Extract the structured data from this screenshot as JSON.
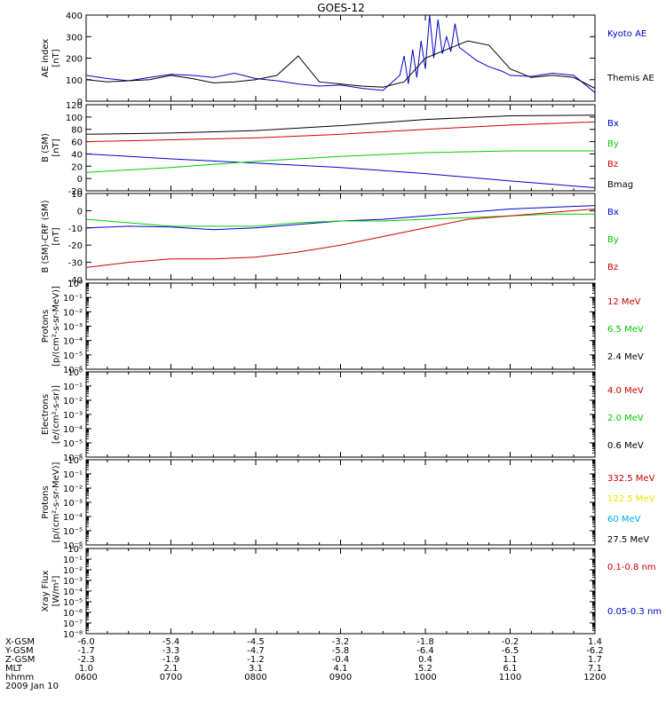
{
  "title": "GOES-12",
  "date_label": "2009 Jan 10",
  "colors": {
    "black": "#000000",
    "red": "#cc0000",
    "green": "#00cc00",
    "blue": "#0000cc",
    "yellow": "#e6e600",
    "cyan": "#00aaee"
  },
  "time_axis": {
    "labels": [
      "0600",
      "0700",
      "0800",
      "0900",
      "1000",
      "1100",
      "1200"
    ],
    "range_hours": [
      6,
      12
    ]
  },
  "ephemeris": {
    "rows": [
      {
        "name": "X-GSM",
        "values": [
          "-6.0",
          "-5.4",
          "-4.5",
          "-3.2",
          "-1.8",
          "-0.2",
          "1.4"
        ]
      },
      {
        "name": "Y-GSM",
        "values": [
          "-1.7",
          "-3.3",
          "-4.7",
          "-5.8",
          "-6.4",
          "-6.5",
          "-6.2"
        ]
      },
      {
        "name": "Z-GSM",
        "values": [
          "-2.3",
          "-1.9",
          "-1.2",
          "-0.4",
          "0.4",
          "1.1",
          "1.7"
        ]
      },
      {
        "name": "MLT",
        "values": [
          "1.0",
          "2.1",
          "3.1",
          "4.1",
          "5.2",
          "6.1",
          "7.1"
        ]
      },
      {
        "name": "hhmm",
        "values": [
          "0600",
          "0700",
          "0800",
          "0900",
          "1000",
          "1100",
          "1200"
        ]
      }
    ]
  },
  "chart_data": [
    {
      "type": "line",
      "ylabel_lines": [
        "AE index",
        "[nT]"
      ],
      "ylim": [
        0,
        400
      ],
      "yticks": [
        "0",
        "100",
        "200",
        "300",
        "400"
      ],
      "log": false,
      "legend": [
        {
          "label": "Kyoto AE",
          "color": "#0000cc"
        },
        {
          "label": "Themis AE",
          "color": "#000000"
        }
      ],
      "series": [
        {
          "name": "Kyoto AE",
          "color": "#0000cc",
          "x": [
            6.0,
            6.25,
            6.5,
            6.75,
            7.0,
            7.25,
            7.5,
            7.75,
            8.0,
            8.25,
            8.5,
            8.75,
            9.0,
            9.25,
            9.5,
            9.7,
            9.75,
            9.8,
            9.85,
            9.9,
            9.95,
            10.0,
            10.05,
            10.1,
            10.15,
            10.2,
            10.25,
            10.3,
            10.35,
            10.4,
            10.5,
            10.6,
            10.75,
            10.9,
            11.0,
            11.25,
            11.5,
            11.75,
            12.0
          ],
          "y": [
            120,
            105,
            95,
            110,
            125,
            120,
            110,
            130,
            105,
            95,
            80,
            70,
            75,
            60,
            50,
            120,
            210,
            80,
            240,
            110,
            280,
            150,
            400,
            200,
            380,
            220,
            300,
            230,
            360,
            250,
            220,
            190,
            160,
            140,
            120,
            115,
            130,
            120,
            40
          ]
        },
        {
          "name": "Themis AE",
          "color": "#000000",
          "x": [
            6.0,
            6.25,
            6.5,
            6.75,
            7.0,
            7.25,
            7.5,
            7.75,
            8.0,
            8.25,
            8.5,
            8.75,
            9.0,
            9.25,
            9.5,
            9.75,
            10.0,
            10.25,
            10.5,
            10.75,
            11.0,
            11.25,
            11.5,
            11.75,
            12.0
          ],
          "y": [
            100,
            90,
            95,
            100,
            120,
            105,
            85,
            90,
            100,
            120,
            210,
            90,
            80,
            70,
            65,
            90,
            200,
            240,
            280,
            260,
            150,
            110,
            120,
            110,
            60
          ]
        }
      ]
    },
    {
      "type": "line",
      "ylabel_lines": [
        "B (SM)",
        "[nT]"
      ],
      "ylim": [
        -20,
        120
      ],
      "yticks": [
        "-20",
        "0",
        "20",
        "40",
        "60",
        "80",
        "100",
        "120"
      ],
      "log": false,
      "legend": [
        {
          "label": "Bx",
          "color": "#0000cc"
        },
        {
          "label": "By",
          "color": "#00cc00"
        },
        {
          "label": "Bz",
          "color": "#cc0000"
        },
        {
          "label": "Bmag",
          "color": "#000000"
        }
      ],
      "series": [
        {
          "name": "Bx",
          "color": "#0000cc",
          "x": [
            6,
            7,
            8,
            9,
            10,
            11,
            12
          ],
          "y": [
            40,
            32,
            25,
            18,
            8,
            -4,
            -15
          ]
        },
        {
          "name": "By",
          "color": "#00cc00",
          "x": [
            6,
            7,
            8,
            9,
            10,
            11,
            12
          ],
          "y": [
            10,
            18,
            28,
            36,
            42,
            45,
            45
          ]
        },
        {
          "name": "Bz",
          "color": "#cc0000",
          "x": [
            6,
            7,
            8,
            9,
            10,
            11,
            12
          ],
          "y": [
            60,
            63,
            66,
            72,
            80,
            87,
            92
          ]
        },
        {
          "name": "Bmag",
          "color": "#000000",
          "x": [
            6,
            7,
            8,
            9,
            10,
            11,
            12
          ],
          "y": [
            72,
            74,
            78,
            86,
            96,
            102,
            103
          ]
        }
      ]
    },
    {
      "type": "line",
      "ylabel_lines": [
        "B (SM)-CRF (SM)",
        "[nT]"
      ],
      "ylim": [
        -40,
        10
      ],
      "yticks": [
        "-40",
        "-30",
        "-20",
        "-10",
        "0",
        "10"
      ],
      "log": false,
      "legend": [
        {
          "label": "Bx",
          "color": "#0000cc"
        },
        {
          "label": "By",
          "color": "#00cc00"
        },
        {
          "label": "Bz",
          "color": "#cc0000"
        }
      ],
      "series": [
        {
          "name": "Bx",
          "color": "#0000cc",
          "x": [
            6,
            6.5,
            7,
            7.5,
            8,
            8.5,
            9,
            9.5,
            10,
            10.5,
            11,
            11.5,
            12
          ],
          "y": [
            -10,
            -9,
            -9.5,
            -11,
            -10,
            -8,
            -6,
            -5,
            -3,
            -1,
            1,
            2,
            3
          ]
        },
        {
          "name": "By",
          "color": "#00cc00",
          "x": [
            6,
            6.5,
            7,
            7.5,
            8,
            8.5,
            9,
            9.5,
            10,
            10.5,
            11,
            11.5,
            12
          ],
          "y": [
            -5,
            -7,
            -9,
            -9,
            -9,
            -7,
            -6,
            -6,
            -5,
            -4,
            -3,
            -2,
            -2
          ]
        },
        {
          "name": "Bz",
          "color": "#cc0000",
          "x": [
            6,
            6.5,
            7,
            7.5,
            8,
            8.5,
            9,
            9.5,
            10,
            10.5,
            11,
            11.5,
            12
          ],
          "y": [
            -33,
            -30,
            -28,
            -28,
            -27,
            -24,
            -20,
            -15,
            -10,
            -5,
            -3,
            -1,
            1
          ]
        }
      ]
    },
    {
      "type": "line",
      "ylabel_lines": [
        "Protons",
        "[p/(cm²-s-sr-MeV)]"
      ],
      "ylim": [
        -6,
        0
      ],
      "yticks": [
        "10⁰",
        "10⁻¹",
        "10⁻²",
        "10⁻³",
        "10⁻⁴",
        "10⁻⁵",
        "10⁻⁶"
      ],
      "log": true,
      "legend": [
        {
          "label": "12 MeV",
          "color": "#cc0000"
        },
        {
          "label": "6.5 MeV",
          "color": "#00cc00"
        },
        {
          "label": "2.4 MeV",
          "color": "#000000"
        }
      ],
      "series": []
    },
    {
      "type": "line",
      "ylabel_lines": [
        "Electrons",
        "[e/(cm²-s-sr)]"
      ],
      "ylim": [
        -6,
        0
      ],
      "yticks": [
        "10⁰",
        "10⁻¹",
        "10⁻²",
        "10⁻³",
        "10⁻⁴",
        "10⁻⁵",
        "10⁻⁶"
      ],
      "log": true,
      "legend": [
        {
          "label": "4.0 MeV",
          "color": "#cc0000"
        },
        {
          "label": "2.0 MeV",
          "color": "#00cc00"
        },
        {
          "label": "0.6 MeV",
          "color": "#000000"
        }
      ],
      "series": []
    },
    {
      "type": "line",
      "ylabel_lines": [
        "Protons",
        "[p/(cm²-s-sr-MeV)]"
      ],
      "ylim": [
        -6,
        0
      ],
      "yticks": [
        "10⁰",
        "10⁻¹",
        "10⁻²",
        "10⁻³",
        "10⁻⁴",
        "10⁻⁵",
        "10⁻⁶"
      ],
      "log": true,
      "legend": [
        {
          "label": "332.5 MeV",
          "color": "#cc0000"
        },
        {
          "label": "122.5 MeV",
          "color": "#e6e600"
        },
        {
          "label": "60 MeV",
          "color": "#00aaee"
        },
        {
          "label": "27.5 MeV",
          "color": "#000000"
        }
      ],
      "series": []
    },
    {
      "type": "line",
      "ylabel_lines": [
        "Xray Flux",
        "[W/m²]"
      ],
      "ylim": [
        -8,
        0
      ],
      "yticks": [
        "10⁰",
        "10⁻¹",
        "10⁻²",
        "10⁻³",
        "10⁻⁴",
        "10⁻⁵",
        "10⁻⁶",
        "10⁻⁷",
        "10⁻⁸"
      ],
      "log": true,
      "legend": [
        {
          "label": "0.1-0.8 nm",
          "color": "#cc0000"
        },
        {
          "label": "0.05-0.3 nm",
          "color": "#0000cc"
        }
      ],
      "series": []
    }
  ]
}
